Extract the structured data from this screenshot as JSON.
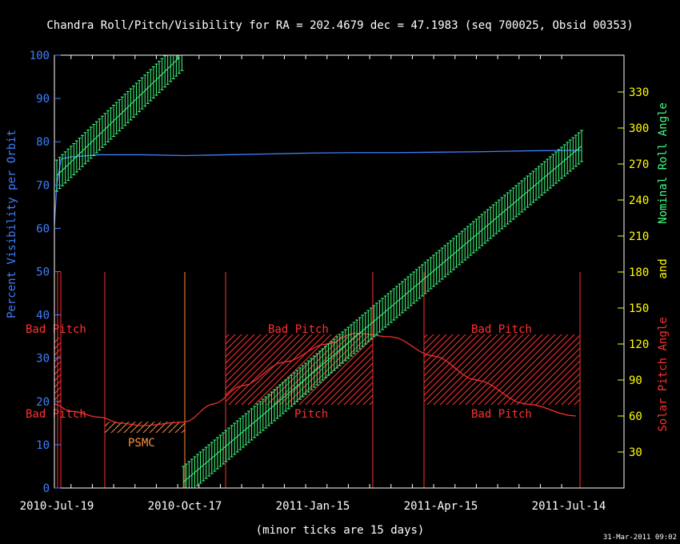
{
  "chart_data": {
    "type": "line",
    "title": "Chandra Roll/Pitch/Visibility for RA = 202.4679 dec = 47.1983 (seq 700025, Obsid 00353)",
    "xlabel": "(minor ticks are 15 days)",
    "x_ticks": [
      "2010-Jul-19",
      "2010-Oct-17",
      "2011-Jan-15",
      "2011-Apr-15",
      "2011-Jul-14"
    ],
    "x_range_days_from_first_tick": [
      0,
      364
    ],
    "left_axis": {
      "label": "Percent Visibility per Orbit",
      "ylim": [
        0,
        100
      ],
      "ticks": [
        "0",
        "10",
        "20",
        "30",
        "40",
        "50",
        "60",
        "70",
        "80",
        "90",
        "100"
      ]
    },
    "right_axis": {
      "label_roll": "Nominal Roll Angle",
      "label_and": "and",
      "label_pitch": "Solar Pitch Angle",
      "ylim": [
        0,
        360
      ],
      "ticks": [
        "30",
        "60",
        "90",
        "120",
        "150",
        "180",
        "210",
        "240",
        "270",
        "300",
        "330"
      ]
    },
    "regions": [
      {
        "label": "Bad Pitch",
        "y_label_pos": "upper-left"
      },
      {
        "label": "Bad Pitch",
        "y_label_pos": "lower-left"
      },
      {
        "label": "PSMC"
      },
      {
        "label": "Bad Pitch",
        "y_label_pos": "upper-middle"
      },
      {
        "label": "Pitch",
        "y_label_pos": "lower-middle"
      },
      {
        "label": "Bad Pitch",
        "y_label_pos": "upper-right"
      },
      {
        "label": "Bad Pitch",
        "y_label_pos": "lower-right"
      }
    ],
    "series": [
      {
        "name": "Percent Visibility per Orbit",
        "color": "#3f7fff",
        "x_days": [
          -2,
          0,
          3,
          10,
          30,
          60,
          90,
          120,
          150,
          180,
          210,
          240,
          270,
          300,
          330,
          360,
          369
        ],
        "values": [
          61,
          70,
          76,
          76.5,
          77,
          77,
          76.8,
          77,
          77.2,
          77.4,
          77.5,
          77.5,
          77.6,
          77.7,
          77.9,
          78,
          78
        ]
      },
      {
        "name": "Solar Pitch Angle",
        "color": "#ff3030",
        "x_days": [
          -2,
          10,
          30,
          45,
          60,
          90,
          110,
          130,
          160,
          190,
          210,
          235,
          265,
          295,
          330,
          365
        ],
        "values": [
          70,
          64,
          59,
          54,
          52,
          55,
          70,
          85,
          105,
          120,
          129,
          126,
          110,
          90,
          70,
          60
        ]
      },
      {
        "name": "Nominal Roll Angle",
        "color": "#40ff80",
        "segments": [
          {
            "x_days": [
              -2,
              89
            ],
            "values": [
              258,
              362
            ]
          },
          {
            "x_days": [
              89,
              369
            ],
            "values": [
              5,
              285
            ]
          }
        ]
      }
    ],
    "colors": {
      "background": "#000000",
      "frame": "#ffffff",
      "left_axis": "#3f7fff",
      "right_axis": "#ffff00",
      "roll": "#40ff80",
      "pitch": "#ff3030",
      "psmc": "#ff9040"
    },
    "grid": false
  },
  "footer": {
    "timestamp": "31-Mar-2011 09:02"
  }
}
